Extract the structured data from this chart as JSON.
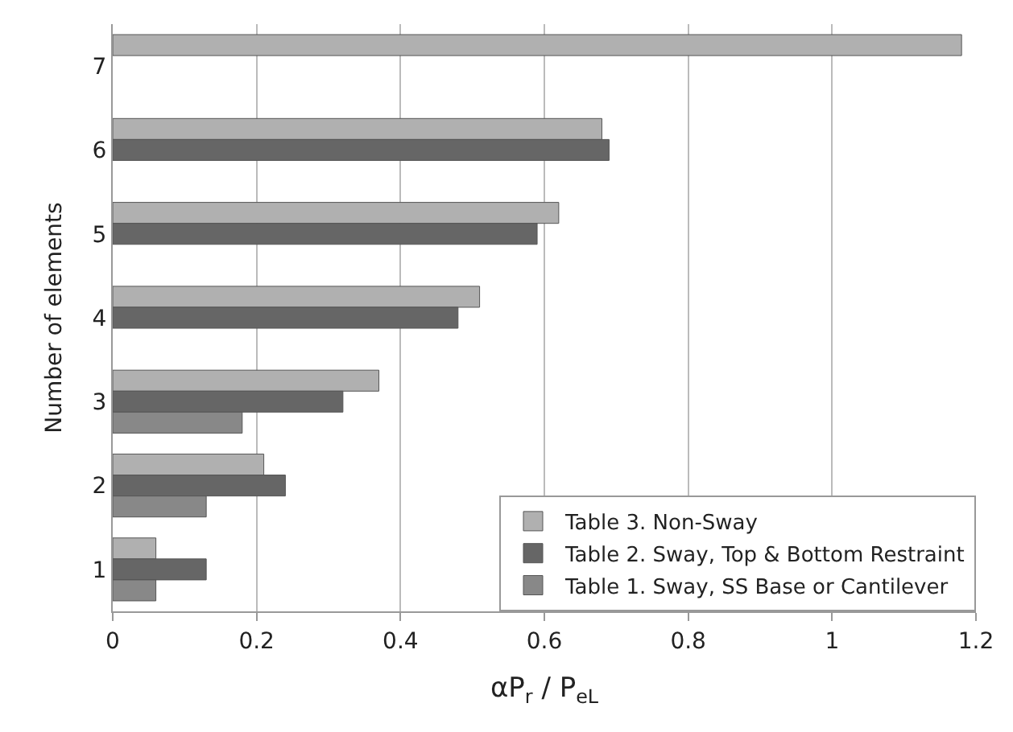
{
  "chart_data": {
    "type": "bar",
    "orientation": "horizontal",
    "xlabel": "αP$_{r}$ / P$_{eL}$",
    "ylabel": "Number of elements",
    "categories": [
      "7",
      "6",
      "5",
      "4",
      "3",
      "2",
      "1"
    ],
    "series": [
      {
        "name": "Table 3. Non-Sway",
        "color": "#b0b0b0",
        "values": [
          1.18,
          0.68,
          0.62,
          0.51,
          0.37,
          0.21,
          0.06
        ]
      },
      {
        "name": "Table 2. Sway, Top & Bottom Restraint",
        "color": "#666666",
        "values": [
          null,
          0.69,
          0.59,
          0.48,
          0.32,
          0.24,
          0.13
        ]
      },
      {
        "name": "Table 1. Sway, SS Base or Cantilever",
        "color": "#888888",
        "values": [
          null,
          null,
          null,
          null,
          0.18,
          0.13,
          0.06
        ]
      }
    ],
    "xlim": [
      0,
      1.2
    ],
    "xticks": [
      0,
      0.2,
      0.4,
      0.6,
      0.8,
      1,
      1.2
    ],
    "grid": "x",
    "legend": "bottom right"
  }
}
